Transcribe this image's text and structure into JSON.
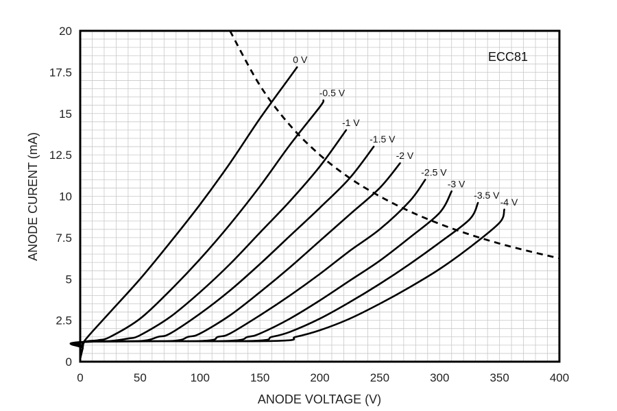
{
  "chart_data": {
    "type": "line",
    "xlabel": "ANODE VOLTAGE (V)",
    "ylabel": "ANODE CURENT (mA)",
    "xlim": [
      0,
      400
    ],
    "ylim": [
      0,
      20
    ],
    "xticks": [
      "0",
      "50",
      "100",
      "150",
      "200",
      "250",
      "300",
      "350",
      "400"
    ],
    "yticks": [
      "0",
      "2.5",
      "5",
      "7.5",
      "10",
      "12.5",
      "15",
      "17.5",
      "20"
    ],
    "grid": true,
    "annotation": "ECC81",
    "line_color": "#000000",
    "grid_color": "#c8c8c8",
    "series": [
      {
        "name": "0 V",
        "label": "0 V",
        "points": [
          [
            0,
            0.2
          ],
          [
            2,
            0.8
          ],
          [
            4,
            1.3
          ],
          [
            25,
            3.0
          ],
          [
            50,
            5.0
          ],
          [
            75,
            7.2
          ],
          [
            100,
            9.5
          ],
          [
            125,
            12.0
          ],
          [
            150,
            14.7
          ],
          [
            175,
            17.2
          ],
          [
            181,
            17.8
          ]
        ]
      },
      {
        "name": "-0.5 V",
        "label": "-0.5 V",
        "points": [
          [
            0,
            0.2
          ],
          [
            2,
            0.8
          ],
          [
            4,
            1.2
          ],
          [
            15,
            1.3
          ],
          [
            25,
            1.5
          ],
          [
            50,
            2.6
          ],
          [
            75,
            4.3
          ],
          [
            100,
            6.2
          ],
          [
            125,
            8.3
          ],
          [
            150,
            10.6
          ],
          [
            175,
            13.1
          ],
          [
            200,
            15.4
          ],
          [
            203,
            15.8
          ]
        ]
      },
      {
        "name": "-1 V",
        "label": "-1 V",
        "points": [
          [
            0,
            0.2
          ],
          [
            2,
            0.8
          ],
          [
            4,
            1.2
          ],
          [
            25,
            1.25
          ],
          [
            40,
            1.4
          ],
          [
            50,
            1.6
          ],
          [
            75,
            2.7
          ],
          [
            100,
            4.2
          ],
          [
            125,
            5.9
          ],
          [
            150,
            7.8
          ],
          [
            175,
            9.7
          ],
          [
            200,
            11.8
          ],
          [
            222,
            14.0
          ]
        ]
      },
      {
        "name": "-1.5 V",
        "label": "-1.5 V",
        "points": [
          [
            0,
            0.2
          ],
          [
            2,
            0.8
          ],
          [
            4,
            1.2
          ],
          [
            50,
            1.25
          ],
          [
            65,
            1.5
          ],
          [
            75,
            1.7
          ],
          [
            100,
            2.9
          ],
          [
            125,
            4.3
          ],
          [
            150,
            5.9
          ],
          [
            175,
            7.6
          ],
          [
            200,
            9.3
          ],
          [
            225,
            11.1
          ],
          [
            245,
            13.0
          ]
        ]
      },
      {
        "name": "-2 V",
        "label": "-2 V",
        "points": [
          [
            0,
            0.2
          ],
          [
            2,
            0.8
          ],
          [
            4,
            1.2
          ],
          [
            75,
            1.25
          ],
          [
            90,
            1.5
          ],
          [
            100,
            1.7
          ],
          [
            125,
            2.8
          ],
          [
            150,
            4.2
          ],
          [
            175,
            5.7
          ],
          [
            200,
            7.3
          ],
          [
            225,
            8.9
          ],
          [
            250,
            10.5
          ],
          [
            267,
            12.0
          ]
        ]
      },
      {
        "name": "-2.5 V",
        "label": "-2.5 V",
        "points": [
          [
            0,
            0.2
          ],
          [
            2,
            0.8
          ],
          [
            4,
            1.2
          ],
          [
            100,
            1.25
          ],
          [
            115,
            1.5
          ],
          [
            125,
            1.7
          ],
          [
            150,
            2.8
          ],
          [
            175,
            4.0
          ],
          [
            200,
            5.3
          ],
          [
            225,
            6.7
          ],
          [
            250,
            8.0
          ],
          [
            275,
            9.7
          ],
          [
            288,
            11.0
          ]
        ]
      },
      {
        "name": "-3 V",
        "label": "-3 V",
        "points": [
          [
            0,
            0.2
          ],
          [
            2,
            0.8
          ],
          [
            4,
            1.2
          ],
          [
            120,
            1.25
          ],
          [
            140,
            1.5
          ],
          [
            150,
            1.7
          ],
          [
            175,
            2.6
          ],
          [
            200,
            3.7
          ],
          [
            225,
            4.9
          ],
          [
            250,
            6.1
          ],
          [
            275,
            7.5
          ],
          [
            300,
            9.0
          ],
          [
            310,
            10.3
          ]
        ]
      },
      {
        "name": "-3.5 V",
        "label": "-3.5 V",
        "points": [
          [
            0,
            0.2
          ],
          [
            2,
            0.8
          ],
          [
            4,
            1.2
          ],
          [
            140,
            1.25
          ],
          [
            160,
            1.5
          ],
          [
            175,
            1.8
          ],
          [
            200,
            2.6
          ],
          [
            225,
            3.6
          ],
          [
            250,
            4.7
          ],
          [
            275,
            5.9
          ],
          [
            300,
            7.2
          ],
          [
            325,
            8.6
          ],
          [
            332,
            9.6
          ]
        ]
      },
      {
        "name": "-4 V",
        "label": "-4 V",
        "points": [
          [
            0,
            0.2
          ],
          [
            2,
            0.8
          ],
          [
            4,
            1.2
          ],
          [
            160,
            1.25
          ],
          [
            180,
            1.5
          ],
          [
            200,
            1.9
          ],
          [
            225,
            2.6
          ],
          [
            250,
            3.5
          ],
          [
            275,
            4.5
          ],
          [
            300,
            5.6
          ],
          [
            325,
            6.9
          ],
          [
            350,
            8.4
          ],
          [
            354,
            9.2
          ]
        ]
      }
    ],
    "max_dissipation_curve": {
      "style": "dashed",
      "points": [
        [
          125,
          20
        ],
        [
          150,
          16.7
        ],
        [
          175,
          14.3
        ],
        [
          200,
          12.5
        ],
        [
          225,
          11.1
        ],
        [
          250,
          10.0
        ],
        [
          275,
          9.09
        ],
        [
          300,
          8.33
        ],
        [
          325,
          7.69
        ],
        [
          350,
          7.14
        ],
        [
          375,
          6.67
        ],
        [
          400,
          6.25
        ]
      ]
    }
  }
}
